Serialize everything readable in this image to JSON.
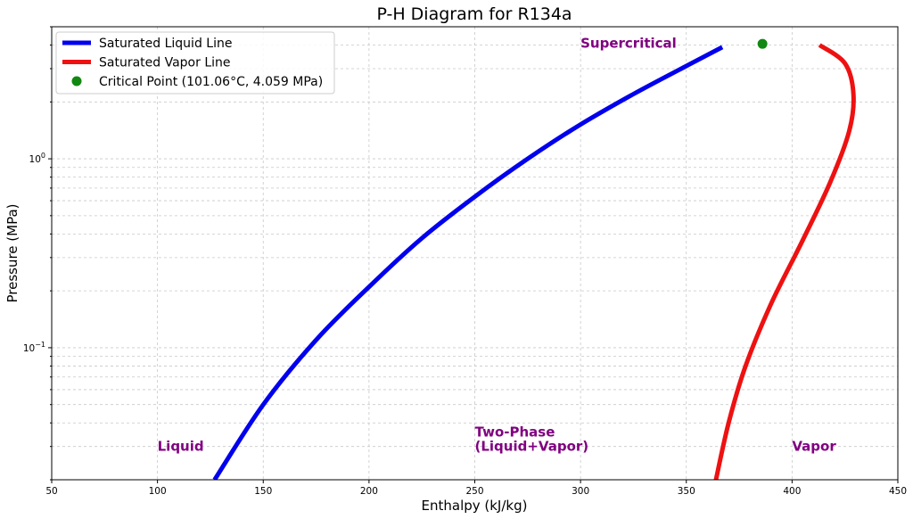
{
  "chart_data": {
    "type": "line",
    "title": "P-H Diagram for R134a",
    "xlabel": "Enthalpy (kJ/kg)",
    "ylabel": "Pressure (MPa)",
    "xlim": [
      50,
      450
    ],
    "ylim": [
      0.02,
      5.0
    ],
    "y_scale": "log",
    "grid": true,
    "legend_position": "top-left",
    "x_ticks": [
      50,
      100,
      150,
      200,
      250,
      300,
      350,
      400,
      450
    ],
    "y_tick_labels": [
      {
        "value": 1,
        "base": "10",
        "exp": "0"
      },
      {
        "value": 0.1,
        "base": "10",
        "exp": "−1"
      }
    ],
    "series": [
      {
        "name": "Saturated Liquid Line",
        "color": "#0000ee",
        "x": [
          127,
          150,
          175,
          200,
          225,
          250,
          275,
          300,
          325,
          350,
          367
        ],
        "y": [
          0.02,
          0.05,
          0.11,
          0.21,
          0.38,
          0.63,
          1.0,
          1.52,
          2.2,
          3.1,
          3.9
        ]
      },
      {
        "name": "Saturated Vapor Line",
        "color": "#ee1111",
        "x": [
          364,
          370,
          378,
          390,
          405,
          418,
          427,
          429,
          425,
          413
        ],
        "y": [
          0.02,
          0.04,
          0.08,
          0.17,
          0.37,
          0.75,
          1.4,
          2.2,
          3.2,
          4.0
        ]
      }
    ],
    "points": [
      {
        "name": "Critical Point (101.06°C, 4.059 MPa)",
        "x": 386,
        "y": 4.059,
        "color": "#118811"
      }
    ],
    "annotations": [
      {
        "text": "Supercritical",
        "x": 300,
        "y": 4.1,
        "color": "#800080"
      },
      {
        "text": "Liquid",
        "x": 100,
        "y": 0.03,
        "color": "#800080"
      },
      {
        "text": "Two-Phase",
        "x": 250,
        "y": 0.03,
        "color": "#800080",
        "line": 1
      },
      {
        "text": "(Liquid+Vapor)",
        "x": 250,
        "y": 0.03,
        "color": "#800080",
        "line": 2
      },
      {
        "text": "Vapor",
        "x": 400,
        "y": 0.03,
        "color": "#800080"
      }
    ]
  }
}
